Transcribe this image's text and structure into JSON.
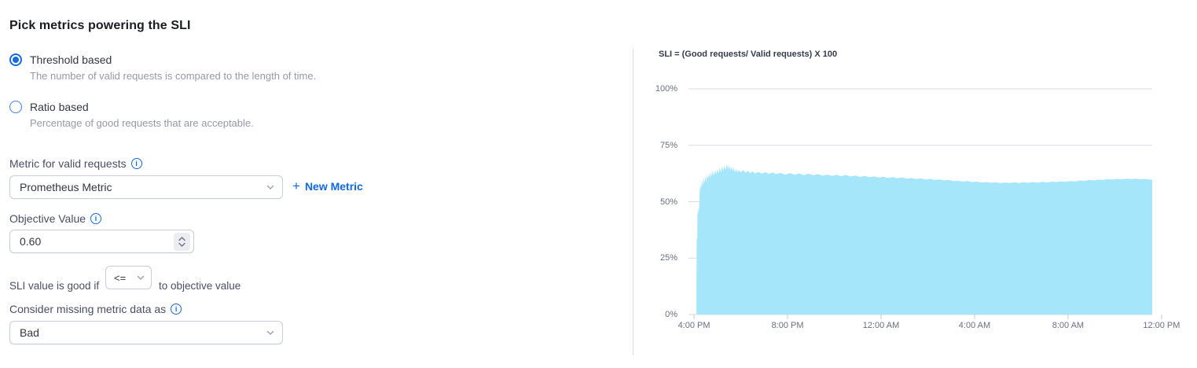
{
  "page": {
    "title": "Pick metrics powering the SLI"
  },
  "sli_type": {
    "options": [
      {
        "label": "Threshold based",
        "description": "The number of valid requests is compared to the length of time.",
        "selected": true
      },
      {
        "label": "Ratio based",
        "description": "Percentage of good requests that are acceptable.",
        "selected": false
      }
    ]
  },
  "form": {
    "metric_label": "Metric for valid requests",
    "metric_value": "Prometheus Metric",
    "new_metric_label": "New Metric",
    "objective_label": "Objective Value",
    "objective_value": "0.60",
    "good_if_prefix": "SLI value is good if",
    "good_if_operator": "<=",
    "good_if_suffix": "to objective value",
    "missing_data_label": "Consider missing metric data as",
    "missing_data_value": "Bad"
  },
  "colors": {
    "accent_blue": "#1769e0",
    "area_fill": "#a5e6fb",
    "grid_line": "#d7dae3",
    "tick_line": "#c6cad6",
    "axis_text": "#696e84"
  },
  "chart_data": {
    "type": "area",
    "title": "SLI = (Good requests/ Valid requests) X 100",
    "ylim": [
      0,
      100
    ],
    "x_domain_hours": [
      -0.44,
      19.6
    ],
    "grid": true,
    "legend": false,
    "yticks": [
      {
        "value": 100,
        "label": "100%"
      },
      {
        "value": 75,
        "label": "75%"
      },
      {
        "value": 50,
        "label": "50%"
      },
      {
        "value": 25,
        "label": "25%"
      },
      {
        "value": 0,
        "label": "0%"
      }
    ],
    "xticks": [
      {
        "hour": 0,
        "label": "4:00 PM"
      },
      {
        "hour": 4,
        "label": "8:00 PM"
      },
      {
        "hour": 8,
        "label": "12:00 AM"
      },
      {
        "hour": 12,
        "label": "4:00 AM"
      },
      {
        "hour": 16,
        "label": "8:00 AM"
      },
      {
        "hour": 20,
        "label": "12:00 PM"
      }
    ],
    "series": [
      {
        "name": "SLI",
        "unit": "%",
        "points_hours_value": [
          [
            0.1,
            0
          ],
          [
            0.11,
            34
          ],
          [
            0.14,
            33
          ],
          [
            0.15,
            46
          ],
          [
            0.17,
            44
          ],
          [
            0.18,
            46
          ],
          [
            0.2,
            48
          ],
          [
            0.22,
            46
          ],
          [
            0.24,
            54
          ],
          [
            0.26,
            57
          ],
          [
            0.28,
            55
          ],
          [
            0.3,
            59
          ],
          [
            0.33,
            56
          ],
          [
            0.36,
            60
          ],
          [
            0.39,
            57
          ],
          [
            0.42,
            61
          ],
          [
            0.45,
            58
          ],
          [
            0.48,
            61
          ],
          [
            0.52,
            59
          ],
          [
            0.56,
            62
          ],
          [
            0.6,
            60
          ],
          [
            0.64,
            62.5
          ],
          [
            0.68,
            60.5
          ],
          [
            0.72,
            63
          ],
          [
            0.76,
            61
          ],
          [
            0.8,
            63.5
          ],
          [
            0.85,
            61.5
          ],
          [
            0.9,
            64
          ],
          [
            0.95,
            62
          ],
          [
            1.0,
            64.5
          ],
          [
            1.05,
            62.5
          ],
          [
            1.1,
            65
          ],
          [
            1.15,
            63
          ],
          [
            1.2,
            65.5
          ],
          [
            1.25,
            63.5
          ],
          [
            1.3,
            66
          ],
          [
            1.35,
            64
          ],
          [
            1.4,
            66.5
          ],
          [
            1.45,
            64.5
          ],
          [
            1.5,
            66
          ],
          [
            1.55,
            64
          ],
          [
            1.6,
            65.5
          ],
          [
            1.65,
            63.5
          ],
          [
            1.7,
            65
          ],
          [
            1.75,
            63
          ],
          [
            1.8,
            64.5
          ],
          [
            1.85,
            63
          ],
          [
            1.9,
            64
          ],
          [
            2.0,
            63
          ],
          [
            2.1,
            64
          ],
          [
            2.2,
            62.8
          ],
          [
            2.3,
            63.6
          ],
          [
            2.4,
            62.6
          ],
          [
            2.5,
            63.4
          ],
          [
            2.6,
            62.5
          ],
          [
            2.75,
            63.2
          ],
          [
            2.9,
            62.4
          ],
          [
            3.05,
            63.1
          ],
          [
            3.2,
            62.3
          ],
          [
            3.35,
            63
          ],
          [
            3.5,
            62.2
          ],
          [
            3.7,
            62.8
          ],
          [
            3.9,
            62
          ],
          [
            4.1,
            62.7
          ],
          [
            4.3,
            61.9
          ],
          [
            4.5,
            62.5
          ],
          [
            4.7,
            61.8
          ],
          [
            4.9,
            62.4
          ],
          [
            5.1,
            61.7
          ],
          [
            5.3,
            62.2
          ],
          [
            5.5,
            61.5
          ],
          [
            5.7,
            62
          ],
          [
            5.9,
            61.4
          ],
          [
            6.1,
            61.9
          ],
          [
            6.3,
            61.3
          ],
          [
            6.5,
            61.8
          ],
          [
            6.7,
            61.2
          ],
          [
            6.9,
            61.6
          ],
          [
            7.1,
            61
          ],
          [
            7.3,
            61.4
          ],
          [
            7.5,
            60.9
          ],
          [
            7.7,
            61.2
          ],
          [
            7.9,
            60.7
          ],
          [
            8.1,
            61
          ],
          [
            8.3,
            60.5
          ],
          [
            8.5,
            60.9
          ],
          [
            8.7,
            60.4
          ],
          [
            8.9,
            60.7
          ],
          [
            9.1,
            60.2
          ],
          [
            9.3,
            60.5
          ],
          [
            9.5,
            60
          ],
          [
            9.7,
            60.3
          ],
          [
            9.9,
            59.8
          ],
          [
            10.1,
            60.1
          ],
          [
            10.3,
            59.6
          ],
          [
            10.5,
            59.9
          ],
          [
            10.7,
            59.4
          ],
          [
            10.9,
            59.6
          ],
          [
            11.1,
            59.1
          ],
          [
            11.3,
            59.3
          ],
          [
            11.5,
            58.9
          ],
          [
            11.7,
            59.1
          ],
          [
            11.9,
            58.7
          ],
          [
            12.1,
            58.9
          ],
          [
            12.3,
            58.5
          ],
          [
            12.5,
            58.7
          ],
          [
            12.7,
            58.4
          ],
          [
            12.9,
            58.6
          ],
          [
            13.1,
            58.3
          ],
          [
            13.3,
            58.5
          ],
          [
            13.5,
            58.3
          ],
          [
            13.7,
            58.6
          ],
          [
            13.9,
            58.3
          ],
          [
            14.1,
            58.6
          ],
          [
            14.3,
            58.4
          ],
          [
            14.5,
            58.7
          ],
          [
            14.7,
            58.4
          ],
          [
            14.9,
            58.8
          ],
          [
            15.1,
            58.5
          ],
          [
            15.3,
            58.9
          ],
          [
            15.5,
            58.7
          ],
          [
            15.7,
            59
          ],
          [
            15.9,
            58.8
          ],
          [
            16.1,
            59.2
          ],
          [
            16.3,
            59
          ],
          [
            16.5,
            59.4
          ],
          [
            16.7,
            59.2
          ],
          [
            16.9,
            59.6
          ],
          [
            17.1,
            59.4
          ],
          [
            17.3,
            59.8
          ],
          [
            17.5,
            59.6
          ],
          [
            17.7,
            60
          ],
          [
            17.9,
            59.8
          ],
          [
            18.1,
            60.1
          ],
          [
            18.3,
            59.9
          ],
          [
            18.5,
            60.2
          ],
          [
            18.7,
            60
          ],
          [
            18.9,
            60.2
          ],
          [
            19.1,
            59.9
          ],
          [
            19.3,
            60.1
          ],
          [
            19.6,
            59.7
          ]
        ]
      }
    ]
  }
}
